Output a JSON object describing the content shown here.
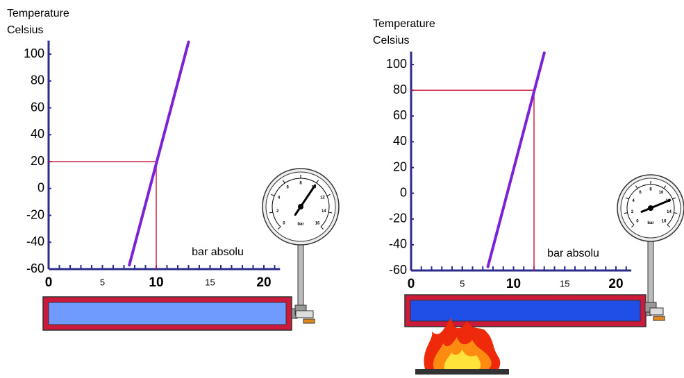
{
  "chart_data": [
    {
      "type": "line",
      "ylabel": [
        "Temperature",
        "Celsius"
      ],
      "xlabel": "bar absolu",
      "x": [
        7.5,
        13
      ],
      "series": [
        {
          "color": "#7b22d8",
          "values": [
            -57,
            109
          ]
        }
      ],
      "xlim": [
        0,
        21.5
      ],
      "ylim": [
        -60,
        110
      ],
      "xticks": [
        0,
        5,
        10,
        15,
        20
      ],
      "xminor": [
        1,
        2,
        3,
        4,
        5,
        6,
        7,
        8,
        9,
        10,
        11,
        12,
        13,
        14,
        15,
        16,
        17,
        18,
        19,
        20,
        21
      ],
      "yticks": [
        -60,
        -40,
        -20,
        0,
        20,
        40,
        60,
        80,
        100
      ],
      "reading": {
        "x": 10,
        "y": 20,
        "color": "#cc2244"
      },
      "gauge": {
        "unit": "bar",
        "range": [
          0,
          16
        ],
        "ticks": [
          0,
          2,
          4,
          6,
          8,
          10,
          12,
          14,
          16
        ]
      }
    },
    {
      "type": "line",
      "ylabel": [
        "Temperature",
        "Celsius"
      ],
      "xlabel": "bar absolu",
      "x": [
        7.5,
        13
      ],
      "series": [
        {
          "color": "#7b22d8",
          "values": [
            -57,
            109
          ]
        }
      ],
      "xlim": [
        0,
        21.5
      ],
      "ylim": [
        -60,
        110
      ],
      "xticks": [
        0,
        5,
        10,
        15,
        20
      ],
      "xminor": [
        1,
        2,
        3,
        4,
        5,
        6,
        7,
        8,
        9,
        10,
        11,
        12,
        13,
        14,
        15,
        16,
        17,
        18,
        19,
        20,
        21
      ],
      "yticks": [
        -60,
        -40,
        -20,
        0,
        20,
        40,
        60,
        80,
        100
      ],
      "reading": {
        "x": 12,
        "y": 80,
        "color": "#cc2244"
      },
      "gauge": {
        "unit": "bar",
        "range": [
          0,
          16
        ],
        "ticks": [
          0,
          2,
          4,
          6,
          8,
          10,
          12,
          14,
          16
        ]
      }
    }
  ]
}
